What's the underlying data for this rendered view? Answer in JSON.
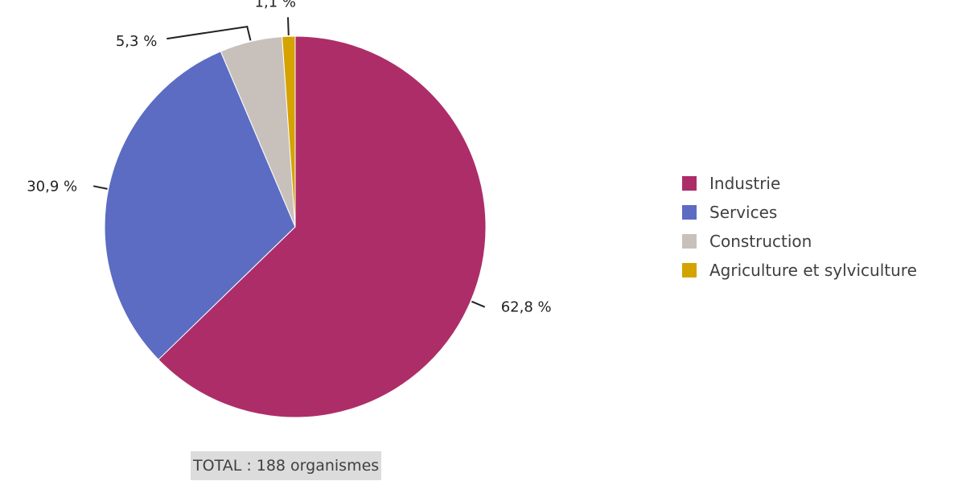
{
  "chart_data": {
    "type": "pie",
    "slices": [
      {
        "name": "Industrie",
        "value": 62.8,
        "label": "62,8 %",
        "color": "#ad2d69"
      },
      {
        "name": "Services",
        "value": 30.9,
        "label": "30,9 %",
        "color": "#5c6cc2"
      },
      {
        "name": "Construction",
        "value": 5.3,
        "label": "5,3 %",
        "color": "#c8c1bb"
      },
      {
        "name": "Agriculture et sylviculture",
        "value": 1.1,
        "label": "1,1 %",
        "color": "#d4a300"
      }
    ],
    "legend_position": "right",
    "start_angle": "top",
    "direction": "clockwise"
  },
  "footer": {
    "total_label": "TOTAL : 188 organismes"
  }
}
